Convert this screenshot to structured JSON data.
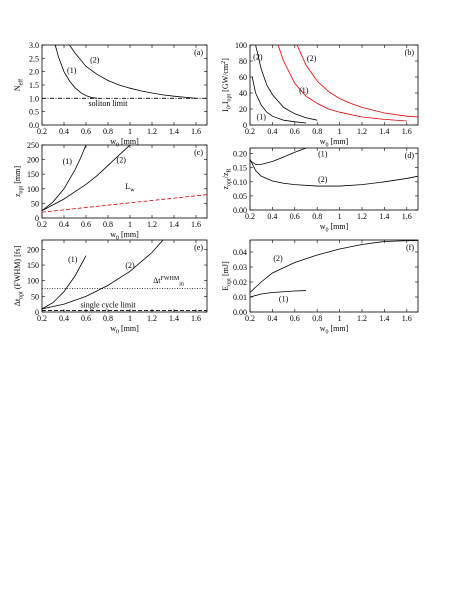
{
  "chart_data": [
    {
      "type": "line",
      "panel_label": "(a)",
      "xlabel": [
        "w",
        {
          "sub": "0"
        },
        " [mm]"
      ],
      "ylabel": [
        "N",
        {
          "sub": "eff"
        }
      ],
      "xlim": [
        0.2,
        1.7
      ],
      "xticks": [
        0.2,
        0.4,
        0.6,
        0.8,
        1,
        1.2,
        1.4,
        1.6
      ],
      "ylim": [
        0,
        3
      ],
      "yticks": [
        {
          "value": 0,
          "label": "0.0"
        },
        0.5,
        {
          "value": 1,
          "label": "1.0"
        },
        1.5,
        {
          "value": 2,
          "label": "2.0"
        },
        2.5,
        {
          "value": 3,
          "label": "3.0"
        }
      ],
      "series": [
        {
          "name": "(1)",
          "color": "#000",
          "style": "solid",
          "x": [
            0.32,
            0.35,
            0.4,
            0.45,
            0.5,
            0.55,
            0.6,
            0.65,
            0.7
          ],
          "values": [
            3,
            2.55,
            2,
            1.65,
            1.4,
            1.22,
            1.1,
            1.03,
            1
          ]
        },
        {
          "name": "(2)",
          "color": "#000",
          "style": "solid",
          "x": [
            0.45,
            0.5,
            0.6,
            0.7,
            0.8,
            0.9,
            1,
            1.1,
            1.2,
            1.3,
            1.4,
            1.5,
            1.6
          ],
          "values": [
            3,
            2.7,
            2.2,
            1.9,
            1.67,
            1.5,
            1.38,
            1.28,
            1.2,
            1.13,
            1.08,
            1.04,
            1
          ]
        },
        {
          "name": "soliton limit",
          "color": "#000",
          "style": "dashdot",
          "x": [
            0.2,
            1.7
          ],
          "values": [
            1,
            1
          ]
        }
      ],
      "annotations": [
        {
          "text": [
            "(1)"
          ]
        },
        {
          "text": [
            "(2)"
          ]
        },
        {
          "text": [
            "soliton limit"
          ]
        }
      ]
    },
    {
      "type": "line",
      "panel_label": "(b)",
      "xlabel": [
        "w",
        {
          "sub": "0"
        },
        " [mm]"
      ],
      "ylabel": [
        "I",
        {
          "sub": "0"
        },
        ",I",
        {
          "sub": "opt"
        },
        " [GW/cm",
        {
          "sup": "2"
        },
        "]"
      ],
      "xlim": [
        0.2,
        1.7
      ],
      "xticks": [
        0.2,
        0.4,
        0.6,
        0.8,
        1,
        1.2,
        1.4,
        1.6
      ],
      "ylim": [
        0,
        100
      ],
      "yticks": [
        0,
        20,
        40,
        60,
        80,
        100
      ],
      "series": [
        {
          "name": "(2)",
          "color": "#000",
          "style": "solid",
          "x": [
            0.25,
            0.3,
            0.35,
            0.4,
            0.5,
            0.6,
            0.7,
            0.8
          ],
          "values": [
            100,
            70,
            50,
            38,
            22,
            14,
            9,
            6
          ]
        },
        {
          "name": "(1)",
          "color": "#000",
          "style": "solid",
          "x": [
            0.22,
            0.25,
            0.3,
            0.35,
            0.4,
            0.5,
            0.6,
            0.7
          ],
          "values": [
            60,
            40,
            25,
            16,
            11,
            6,
            4,
            2.5
          ]
        },
        {
          "name": "(1)",
          "color": "#e00000",
          "style": "solid",
          "x": [
            0.45,
            0.5,
            0.6,
            0.7,
            0.8,
            0.9,
            1,
            1.2,
            1.4,
            1.6
          ],
          "values": [
            100,
            80,
            52,
            36,
            27,
            20,
            16,
            10,
            7,
            5
          ]
        },
        {
          "name": "(2)",
          "color": "#e00000",
          "style": "solid",
          "x": [
            0.62,
            0.7,
            0.8,
            0.9,
            1,
            1.1,
            1.2,
            1.4,
            1.6,
            1.7
          ],
          "values": [
            100,
            75,
            55,
            42,
            33,
            27,
            22,
            15,
            11,
            10
          ]
        }
      ],
      "annotations": [
        {
          "text": [
            "(2)"
          ]
        },
        {
          "text": [
            "(1)"
          ]
        },
        {
          "text": [
            "(2)"
          ],
          "color": "#e00000"
        },
        {
          "text": [
            "(1)"
          ],
          "color": "#e00000"
        }
      ]
    },
    {
      "type": "line",
      "panel_label": "(c)",
      "xlabel": [
        "w",
        {
          "sub": "0"
        },
        " [mm]"
      ],
      "ylabel": [
        "z",
        {
          "sub": "opt"
        },
        " [mm]"
      ],
      "xlim": [
        0.2,
        1.7
      ],
      "xticks": [
        0.2,
        0.4,
        0.6,
        0.8,
        1,
        1.2,
        1.4,
        1.6
      ],
      "ylim": [
        0,
        250
      ],
      "yticks": [
        0,
        50,
        100,
        150,
        200,
        250
      ],
      "series": [
        {
          "name": "(1)",
          "color": "#000",
          "style": "solid",
          "x": [
            0.2,
            0.3,
            0.4,
            0.5,
            0.55,
            0.6
          ],
          "values": [
            25,
            55,
            100,
            165,
            205,
            250
          ]
        },
        {
          "name": "(2)",
          "color": "#000",
          "style": "solid",
          "x": [
            0.2,
            0.3,
            0.4,
            0.5,
            0.6,
            0.7,
            0.8,
            0.9,
            1
          ],
          "values": [
            25,
            45,
            65,
            90,
            115,
            145,
            180,
            215,
            250
          ]
        },
        {
          "name": "L_w",
          "color": "#e00000",
          "style": "dashed",
          "x": [
            0.2,
            1.7
          ],
          "values": [
            20,
            80
          ]
        }
      ],
      "annotations": [
        {
          "text": [
            "(1)"
          ]
        },
        {
          "text": [
            "(2)"
          ]
        },
        {
          "text": [
            "L",
            {
              "sub": "w"
            }
          ]
        }
      ]
    },
    {
      "type": "line",
      "panel_label": "(d)",
      "xlabel": [
        "w",
        {
          "sub": "0"
        },
        " [mm]"
      ],
      "ylabel": [
        "z",
        {
          "sub": "opt"
        },
        "/z",
        {
          "sub": "R"
        }
      ],
      "xlim": [
        0.2,
        1.7
      ],
      "xticks": [
        0.2,
        0.4,
        0.6,
        0.8,
        1,
        1.2,
        1.4,
        1.6
      ],
      "ylim": [
        0,
        0.22
      ],
      "yticks": [
        {
          "value": 0,
          "label": "0.00"
        },
        0.05,
        {
          "value": 0.1,
          "label": "0.10"
        },
        0.15,
        {
          "value": 0.2,
          "label": "0.20"
        }
      ],
      "series": [
        {
          "name": "(1)",
          "color": "#000",
          "style": "solid",
          "x": [
            0.2,
            0.25,
            0.3,
            0.4,
            0.5,
            0.6,
            0.7
          ],
          "values": [
            0.175,
            0.162,
            0.162,
            0.172,
            0.188,
            0.205,
            0.22
          ]
        },
        {
          "name": "(2)",
          "color": "#000",
          "style": "solid",
          "x": [
            0.2,
            0.25,
            0.3,
            0.4,
            0.5,
            0.6,
            0.8,
            1,
            1.2,
            1.4,
            1.6,
            1.7
          ],
          "values": [
            0.18,
            0.14,
            0.12,
            0.103,
            0.095,
            0.09,
            0.085,
            0.085,
            0.09,
            0.1,
            0.112,
            0.12
          ]
        }
      ],
      "annotations": [
        {
          "text": [
            "(1)"
          ]
        },
        {
          "text": [
            "(2)"
          ]
        }
      ]
    },
    {
      "type": "line",
      "panel_label": "(e)",
      "xlabel": [
        "w",
        {
          "sub": "0"
        },
        " [mm]"
      ],
      "ylabel": [
        "Δt",
        {
          "sub": "opt"
        },
        " (FWHM) [fs]"
      ],
      "xlim": [
        0.2,
        1.7
      ],
      "xticks": [
        0.2,
        0.4,
        0.6,
        0.8,
        1,
        1.2,
        1.4,
        1.6
      ],
      "ylim": [
        0,
        230
      ],
      "yticks": [
        0,
        50,
        100,
        150,
        200
      ],
      "series": [
        {
          "name": "(1)",
          "color": "#000",
          "style": "solid",
          "x": [
            0.2,
            0.3,
            0.4,
            0.5,
            0.6
          ],
          "values": [
            10,
            30,
            65,
            115,
            180
          ]
        },
        {
          "name": "(2)",
          "color": "#000",
          "style": "solid",
          "x": [
            0.2,
            0.4,
            0.6,
            0.8,
            1,
            1.2,
            1.3
          ],
          "values": [
            10,
            25,
            50,
            85,
            130,
            190,
            230
          ]
        },
        {
          "name": "Δt_in",
          "color": "#000",
          "style": "dotted",
          "x": [
            0.2,
            1.7
          ],
          "values": [
            75,
            75
          ]
        },
        {
          "name": "single cycle limit",
          "color": "#000",
          "style": "dashed",
          "x": [
            0.2,
            1.7
          ],
          "values": [
            5,
            5
          ]
        }
      ],
      "annotations": [
        {
          "text": [
            "(1)"
          ]
        },
        {
          "text": [
            "(2)"
          ]
        },
        {
          "text": [
            "Δt",
            {
              "sup": "FWHM"
            },
            {
              "sub": "in"
            }
          ]
        },
        {
          "text": [
            "single cycle limit"
          ]
        }
      ]
    },
    {
      "type": "line",
      "panel_label": "(f)",
      "xlabel": [
        "w",
        {
          "sub": "0"
        },
        " [mm]"
      ],
      "ylabel": [
        "E",
        {
          "sub": "opt"
        },
        " [mJ]"
      ],
      "xlim": [
        0.2,
        1.7
      ],
      "xticks": [
        0.2,
        0.4,
        0.6,
        0.8,
        1,
        1.2,
        1.4,
        1.6
      ],
      "ylim": [
        0,
        0.048
      ],
      "yticks": [
        {
          "value": 0,
          "label": "0.00"
        },
        0.01,
        0.02,
        0.03,
        0.04
      ],
      "series": [
        {
          "name": "(1)",
          "color": "#000",
          "style": "solid",
          "x": [
            0.2,
            0.3,
            0.4,
            0.5,
            0.6,
            0.7
          ],
          "values": [
            0.01,
            0.012,
            0.013,
            0.0135,
            0.014,
            0.0143
          ]
        },
        {
          "name": "(2)",
          "color": "#000",
          "style": "solid",
          "x": [
            0.2,
            0.3,
            0.4,
            0.6,
            0.8,
            1,
            1.2,
            1.4,
            1.6,
            1.7
          ],
          "values": [
            0.013,
            0.02,
            0.026,
            0.033,
            0.038,
            0.042,
            0.045,
            0.047,
            0.0475,
            0.0477
          ]
        }
      ],
      "annotations": [
        {
          "text": [
            "(1)"
          ]
        },
        {
          "text": [
            "(2)"
          ]
        }
      ]
    }
  ]
}
